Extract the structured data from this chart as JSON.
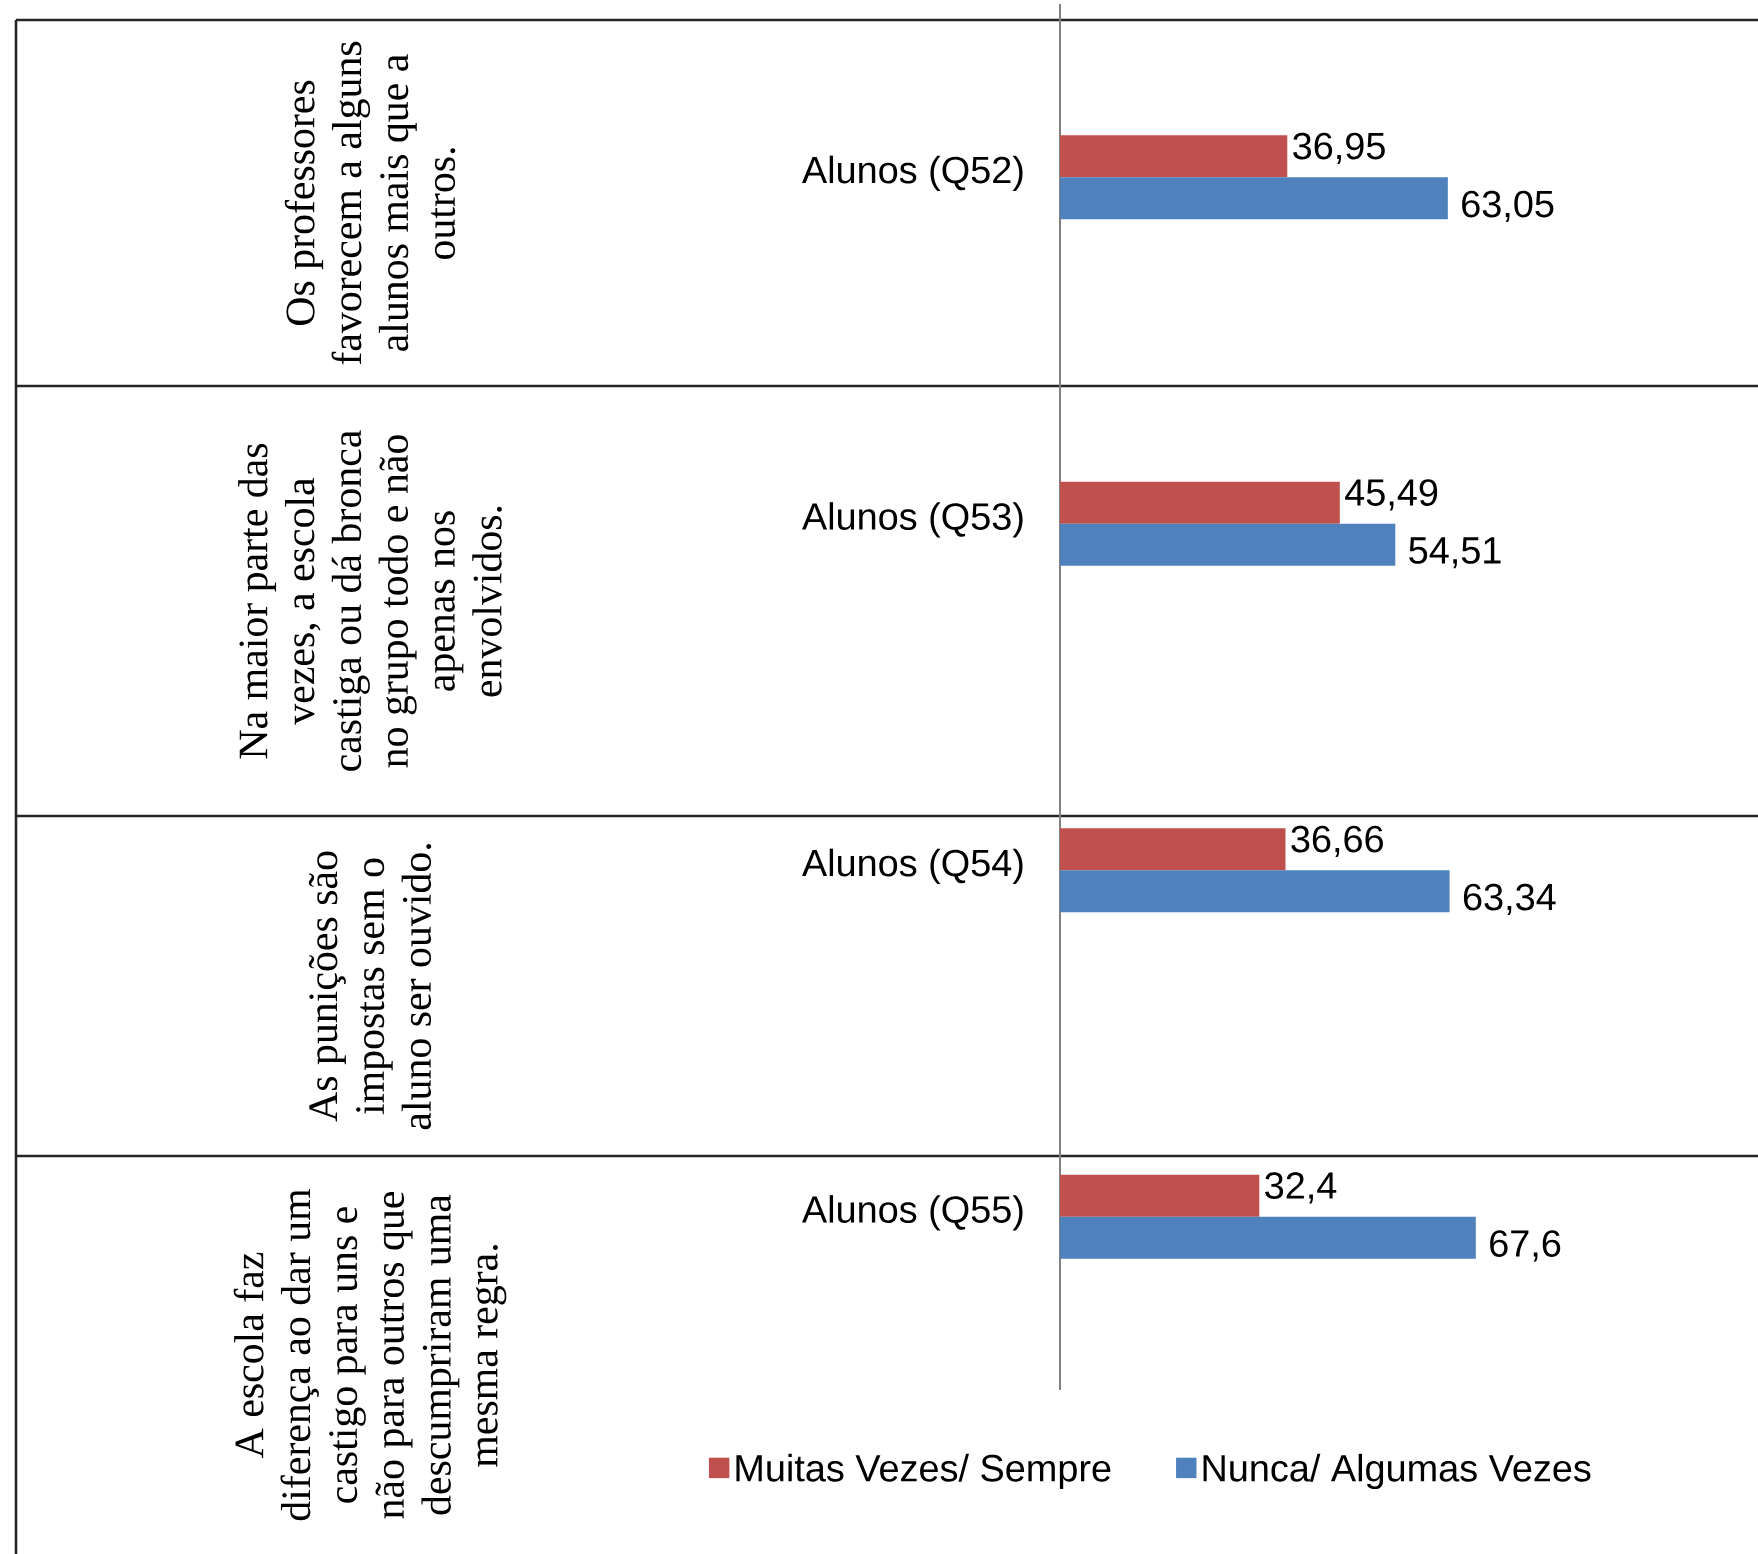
{
  "chart_data": {
    "type": "bar",
    "orientation": "horizontal",
    "categories": [
      "Alunos (Q52)",
      "Alunos (Q53)",
      "Alunos (Q54)",
      "Alunos (Q55)"
    ],
    "series": [
      {
        "name": "Muitas Vezes/ Sempre",
        "color": "#c0504d",
        "values": [
          36.95,
          45.49,
          36.66,
          32.4
        ],
        "value_labels": [
          "36,95",
          "45,49",
          "36,66",
          "32,4"
        ]
      },
      {
        "name": "Nunca/ Algumas Vezes",
        "color": "#4f81bd",
        "values": [
          63.05,
          54.51,
          63.34,
          67.6
        ],
        "value_labels": [
          "63,05",
          "54,51",
          "63,34",
          "67,6"
        ]
      }
    ],
    "annotations": [
      "Os professores favorecem a alguns alunos mais que a outros.",
      "Na maior parte das vezes, a escola castiga ou dá bronca no grupo todo e não apenas nos envolvidos.",
      "As punições são impostas sem o aluno ser ouvido.",
      "A escola faz diferença ao dar um castigo para uns e não para outros que descumpriram uma mesma regra."
    ],
    "legend": "bottom"
  }
}
